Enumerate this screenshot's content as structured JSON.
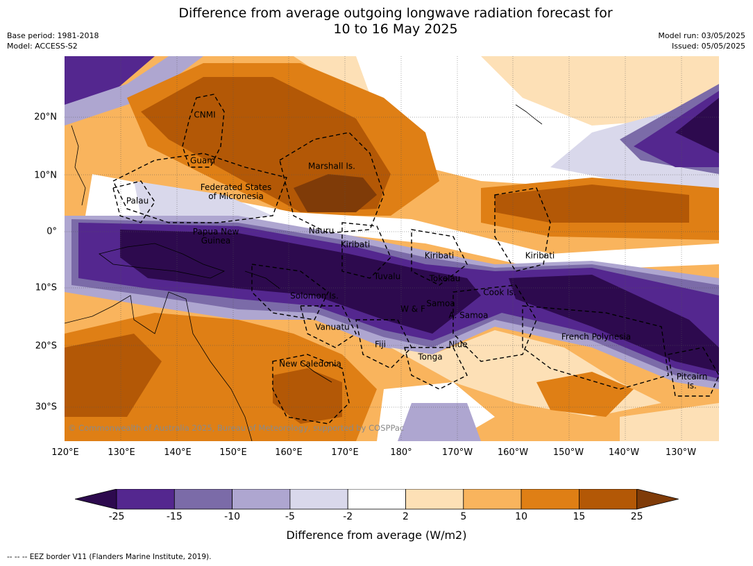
{
  "title_line1": "Difference from average outgoing longwave radiation forecast for",
  "title_line2": "10 to 16 May 2025",
  "meta": {
    "base_period": "Base period: 1981-2018",
    "model": "Model: ACCESS-S2",
    "model_run": "Model run: 03/05/2025",
    "issued": "Issued: 05/05/2025"
  },
  "axes": {
    "lon_labels": [
      "120°E",
      "130°E",
      "140°E",
      "150°E",
      "160°E",
      "170°E",
      "180°",
      "170°W",
      "160°W",
      "150°W",
      "140°W",
      "130°W"
    ],
    "lat_labels": [
      "20°N",
      "10°N",
      "0°",
      "10°S",
      "20°S",
      "30°S"
    ]
  },
  "places": [
    {
      "name": "CNMI"
    },
    {
      "name": "Guam"
    },
    {
      "name": "Marshall Is."
    },
    {
      "name": "Federated States\nof Micronesia"
    },
    {
      "name": "Palau"
    },
    {
      "name": "Papua New\nGuinea"
    },
    {
      "name": "Nauru"
    },
    {
      "name": "Kiribati"
    },
    {
      "name": "Kiribati"
    },
    {
      "name": "Kiribati"
    },
    {
      "name": "Tuvalu"
    },
    {
      "name": "Tokelau"
    },
    {
      "name": "Solomon Is."
    },
    {
      "name": "Cook Is."
    },
    {
      "name": "W & F"
    },
    {
      "name": "Samoa"
    },
    {
      "name": "A. Samoa"
    },
    {
      "name": "Vanuatu"
    },
    {
      "name": "Fiji"
    },
    {
      "name": "Niue"
    },
    {
      "name": "French Polynesia"
    },
    {
      "name": "Tonga"
    },
    {
      "name": "New Caledonia"
    },
    {
      "name": "Pitcairn\nIs."
    }
  ],
  "copyright": "© Commonwealth of Australia 2025, Bureau of Meteorology, supported by COSPPac",
  "colorbar": {
    "ticks": [
      "-25",
      "-15",
      "-10",
      "-5",
      "-2",
      "2",
      "5",
      "10",
      "15",
      "25"
    ],
    "colors": [
      "#2d0a4e",
      "#54278f",
      "#7b6ba8",
      "#aea6d0",
      "#d9d8eb",
      "#ffffff",
      "#fde0b6",
      "#f9b45d",
      "#df7f15",
      "#b35806",
      "#7f3b08"
    ],
    "title": "Difference from average (W/m2)"
  },
  "footnote": "--  --  -- EEZ border V11 (Flanders Marine Institute, 2019)."
}
